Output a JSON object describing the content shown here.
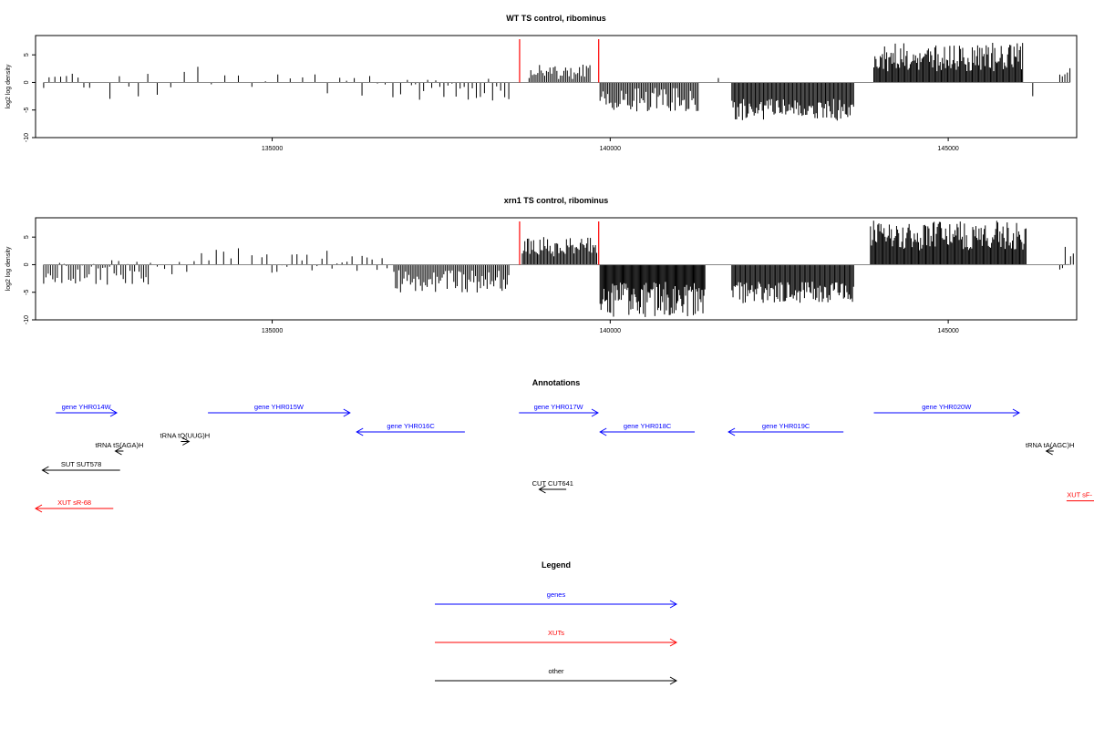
{
  "colors": {
    "genes": "#0000ff",
    "xuts": "#ff0000",
    "other": "#000000",
    "highlight": "#ff0000",
    "axis": "#000000"
  },
  "chart_data": [
    {
      "type": "bar",
      "title": "WT TS control, ribominus",
      "xlabel": "",
      "ylabel": "log2 log density",
      "xlim": [
        131500,
        146900
      ],
      "ylim": [
        -10,
        8.5
      ],
      "x_ticks": [
        135000,
        140000,
        145000
      ],
      "x_tick_labels": [
        "135000",
        "140000",
        "145000"
      ],
      "y_ticks": [
        -10,
        -5,
        0,
        5
      ],
      "y_tick_labels": [
        "-10",
        "-5",
        "0",
        "5"
      ],
      "highlight_lines": [
        138660,
        139830
      ],
      "segments": [
        {
          "start": 131620,
          "end": 131620,
          "min": -1,
          "max": -1,
          "count": 1,
          "seed": 1
        },
        {
          "start": 131700,
          "end": 132300,
          "min": -3,
          "max": 2,
          "count": 8,
          "seed": 2
        },
        {
          "start": 132600,
          "end": 133300,
          "min": -3,
          "max": 2.8,
          "count": 6,
          "seed": 3
        },
        {
          "start": 133500,
          "end": 134700,
          "min": -2,
          "max": 3,
          "count": 7,
          "seed": 4
        },
        {
          "start": 134900,
          "end": 136000,
          "min": -2,
          "max": 3,
          "count": 7,
          "seed": 5
        },
        {
          "start": 136100,
          "end": 136900,
          "min": -3,
          "max": 2,
          "count": 8,
          "seed": 6
        },
        {
          "start": 137000,
          "end": 138500,
          "min": -3.5,
          "max": 1,
          "count": 26,
          "seed": 7
        },
        {
          "start": 138800,
          "end": 139700,
          "min": 0.5,
          "max": 3.5,
          "count": 36,
          "seed": 8
        },
        {
          "start": 139850,
          "end": 141300,
          "min": -5.5,
          "max": -1,
          "count": 65,
          "seed": 9
        },
        {
          "start": 141600,
          "end": 141620,
          "min": 0.8,
          "max": 0.8,
          "count": 1,
          "seed": 10
        },
        {
          "start": 141800,
          "end": 143600,
          "min": -7,
          "max": -3,
          "count": 105,
          "seed": 11
        },
        {
          "start": 143900,
          "end": 146100,
          "min": 2,
          "max": 7.2,
          "count": 140,
          "seed": 12
        },
        {
          "start": 146250,
          "end": 146250,
          "min": -2.5,
          "max": -2.5,
          "count": 1,
          "seed": 13
        },
        {
          "start": 146650,
          "end": 146800,
          "min": -1,
          "max": 3.2,
          "count": 5,
          "seed": 14
        }
      ]
    },
    {
      "type": "bar",
      "title": "xrn1 TS control, ribominus",
      "xlabel": "",
      "ylabel": "log2 log density",
      "xlim": [
        131500,
        146900
      ],
      "ylim": [
        -10,
        8.5
      ],
      "x_ticks": [
        135000,
        140000,
        145000
      ],
      "x_tick_labels": [
        "135000",
        "140000",
        "145000"
      ],
      "y_ticks": [
        -10,
        -5,
        0,
        5
      ],
      "y_tick_labels": [
        "-10",
        "-5",
        "0",
        "5"
      ],
      "highlight_lines": [
        138660,
        139830
      ],
      "segments": [
        {
          "start": 131620,
          "end": 133200,
          "min": -4,
          "max": 1,
          "count": 48,
          "seed": 21
        },
        {
          "start": 133300,
          "end": 134500,
          "min": -2,
          "max": 3,
          "count": 12,
          "seed": 22
        },
        {
          "start": 134700,
          "end": 136700,
          "min": -1.5,
          "max": 3,
          "count": 28,
          "seed": 23
        },
        {
          "start": 136800,
          "end": 138500,
          "min": -5.2,
          "max": -1,
          "count": 70,
          "seed": 24
        },
        {
          "start": 138700,
          "end": 139800,
          "min": 1.5,
          "max": 5,
          "count": 60,
          "seed": 25
        },
        {
          "start": 139850,
          "end": 141400,
          "min": -9.5,
          "max": -3,
          "count": 110,
          "seed": 26
        },
        {
          "start": 141800,
          "end": 143600,
          "min": -7,
          "max": -3,
          "count": 110,
          "seed": 27
        },
        {
          "start": 143850,
          "end": 146150,
          "min": 2.5,
          "max": 8,
          "count": 150,
          "seed": 28
        },
        {
          "start": 146650,
          "end": 146850,
          "min": -1,
          "max": 3.5,
          "count": 6,
          "seed": 29
        }
      ]
    }
  ],
  "annotations": {
    "title": "Annotations",
    "xlim": [
      131500,
      146900
    ],
    "features": [
      {
        "label": "gene YHR014W",
        "type": "genes",
        "start": 131800,
        "end": 132700,
        "strand": "+",
        "row": 0
      },
      {
        "label": "gene YHR015W",
        "type": "genes",
        "start": 134050,
        "end": 136150,
        "strand": "+",
        "row": 0
      },
      {
        "label": "gene YHR016C",
        "type": "genes",
        "start": 136250,
        "end": 137850,
        "strand": "-",
        "row": 1
      },
      {
        "label": "gene YHR017W",
        "type": "genes",
        "start": 138650,
        "end": 139820,
        "strand": "+",
        "row": 0
      },
      {
        "label": "gene YHR018C",
        "type": "genes",
        "start": 139850,
        "end": 141250,
        "strand": "-",
        "row": 1
      },
      {
        "label": "gene YHR019C",
        "type": "genes",
        "start": 141750,
        "end": 143450,
        "strand": "-",
        "row": 1
      },
      {
        "label": "gene YHR020W",
        "type": "genes",
        "start": 143900,
        "end": 146050,
        "strand": "+",
        "row": 0
      },
      {
        "label": "tRNA tS(AGA)H",
        "type": "other",
        "start": 132680,
        "end": 132800,
        "strand": "-",
        "row": 2
      },
      {
        "label": "tRNA tQ(UUG)H",
        "type": "other",
        "start": 133650,
        "end": 133770,
        "strand": "+",
        "row": 1.5
      },
      {
        "label": "tRNA tA(AGC)H",
        "type": "other",
        "start": 146450,
        "end": 146560,
        "strand": "-",
        "row": 2
      },
      {
        "label": "SUT SUT578",
        "type": "other",
        "start": 131600,
        "end": 132750,
        "strand": "-",
        "row": 3
      },
      {
        "label": "CUT CUT641",
        "type": "other",
        "start": 138950,
        "end": 139350,
        "strand": "-",
        "row": 4
      },
      {
        "label": "XUT sR-68",
        "type": "xuts",
        "start": 131500,
        "end": 132650,
        "strand": "-",
        "row": 5
      },
      {
        "label": "XUT sF-",
        "type": "xuts",
        "start": 146750,
        "end": 147300,
        "strand": "+",
        "row": 4.6
      }
    ]
  },
  "legend": {
    "title": "Legend",
    "entries": [
      {
        "label": "genes",
        "type": "genes"
      },
      {
        "label": "XUTs",
        "type": "xuts"
      },
      {
        "label": "other",
        "type": "other"
      }
    ]
  }
}
